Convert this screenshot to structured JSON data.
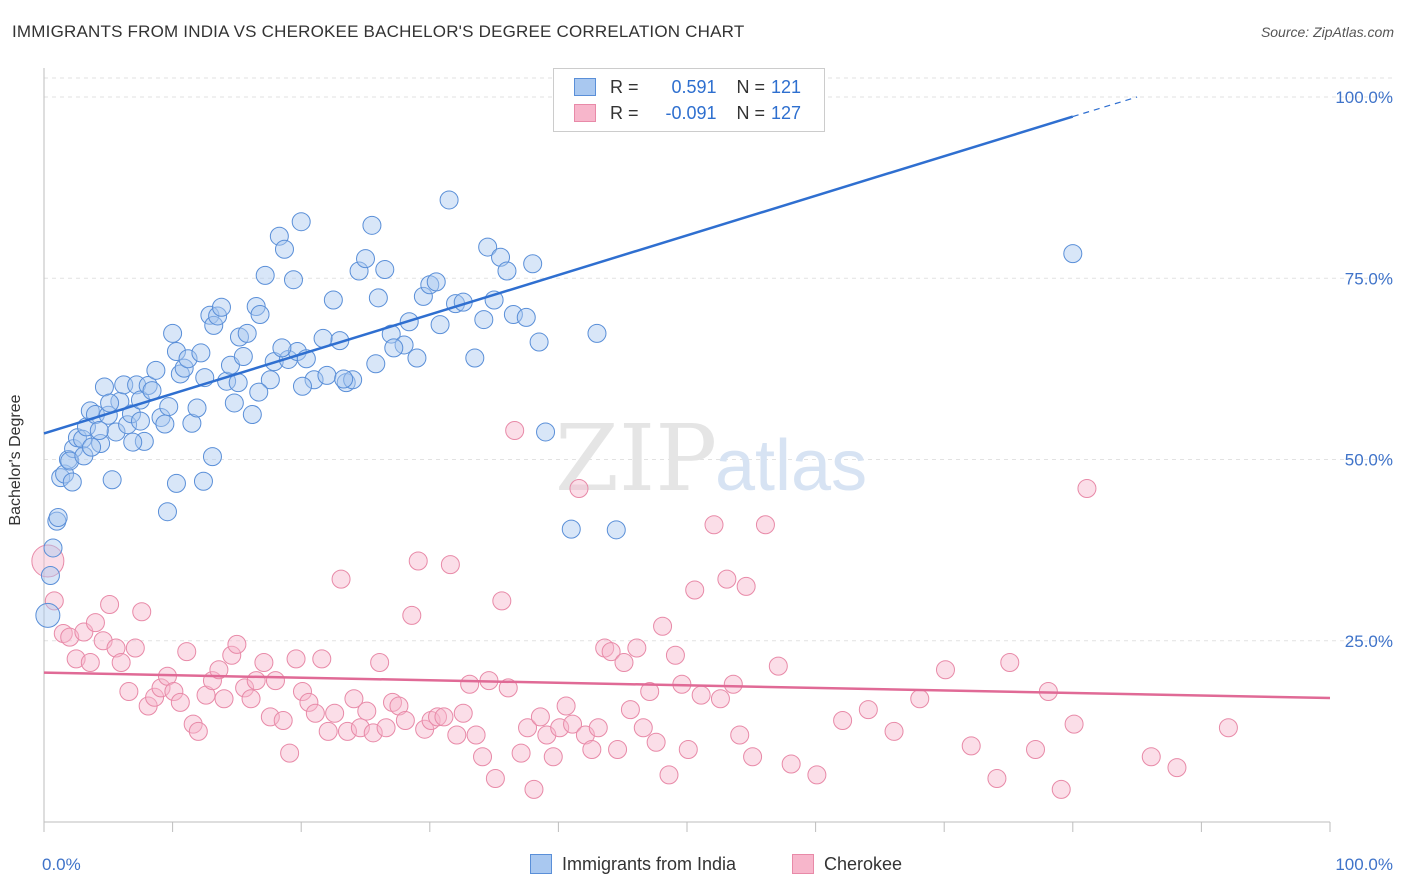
{
  "title": "IMMIGRANTS FROM INDIA VS CHEROKEE BACHELOR'S DEGREE CORRELATION CHART",
  "source": "Source: ZipAtlas.com",
  "watermark": {
    "zip": "ZIP",
    "atlas": "atlas"
  },
  "legend": {
    "india": {
      "r_label": "R =",
      "r_value": "0.591",
      "n_label": "N =",
      "n_value": "121"
    },
    "cherokee": {
      "r_label": "R =",
      "r_value": "-0.091",
      "n_label": "N =",
      "n_value": "127"
    }
  },
  "bottom_legend": {
    "india": "Immigrants from India",
    "cherokee": "Cherokee"
  },
  "colors": {
    "india_fill": "#a9c8f0",
    "india_stroke": "#5a8fd8",
    "india_line": "#2f6fd0",
    "cherokee_fill": "#f7b6cb",
    "cherokee_stroke": "#e88aa8",
    "cherokee_line": "#e06a96",
    "tick_label": "#3f73c9"
  },
  "chart_data": {
    "type": "scatter",
    "xlabel": "",
    "ylabel": "Bachelor's Degree",
    "xlim": [
      0,
      100
    ],
    "ylim": [
      0,
      100
    ],
    "x_tick_labels": [
      {
        "value": 0,
        "label": "0.0%"
      },
      {
        "value": 100,
        "label": "100.0%"
      }
    ],
    "y_tick_labels": [
      {
        "value": 25,
        "label": "25.0%"
      },
      {
        "value": 50,
        "label": "50.0%"
      },
      {
        "value": 75,
        "label": "75.0%"
      },
      {
        "value": 100,
        "label": "100.0%"
      }
    ],
    "x_minor_ticks": [
      0,
      10,
      20,
      30,
      40,
      50,
      60,
      70,
      80,
      90,
      100
    ],
    "grid": "horizontal dashed",
    "legend_position": "top-center",
    "series": [
      {
        "name": "Immigrants from India",
        "trend": {
          "x0": 0,
          "y0": 53.6,
          "x1": 80,
          "y1": 97.3,
          "dashed_to_x": 85,
          "dashed_to_y": 100
        },
        "points": [
          [
            0.3,
            28.5
          ],
          [
            0.5,
            34
          ],
          [
            0.7,
            37.8
          ],
          [
            1,
            41.5
          ],
          [
            1.3,
            47.5
          ],
          [
            1.6,
            48
          ],
          [
            1.9,
            50
          ],
          [
            2.3,
            51.5
          ],
          [
            2.6,
            53
          ],
          [
            3,
            52.8
          ],
          [
            3.3,
            54.5
          ],
          [
            3.6,
            56.7
          ],
          [
            4,
            56.2
          ],
          [
            4.4,
            52.2
          ],
          [
            4.7,
            60
          ],
          [
            5,
            56.1
          ],
          [
            5.3,
            47.2
          ],
          [
            5.6,
            53.8
          ],
          [
            5.9,
            58
          ],
          [
            6.2,
            60.3
          ],
          [
            6.5,
            54.8
          ],
          [
            6.8,
            56.3
          ],
          [
            7.2,
            60.3
          ],
          [
            7.5,
            58.2
          ],
          [
            7.8,
            52.5
          ],
          [
            8.1,
            60.2
          ],
          [
            8.4,
            59.5
          ],
          [
            8.7,
            62.3
          ],
          [
            9.1,
            55.8
          ],
          [
            9.4,
            54.9
          ],
          [
            9.7,
            57.3
          ],
          [
            10,
            67.4
          ],
          [
            10.3,
            64.9
          ],
          [
            10.6,
            61.8
          ],
          [
            10.9,
            62.6
          ],
          [
            11.2,
            63.9
          ],
          [
            11.5,
            55
          ],
          [
            11.9,
            57.1
          ],
          [
            12.2,
            64.7
          ],
          [
            12.5,
            61.3
          ],
          [
            12.9,
            69.9
          ],
          [
            13.2,
            68.5
          ],
          [
            13.5,
            69.8
          ],
          [
            13.8,
            71
          ],
          [
            14.2,
            60.8
          ],
          [
            14.5,
            63
          ],
          [
            14.8,
            57.8
          ],
          [
            15.2,
            66.9
          ],
          [
            15.5,
            64.2
          ],
          [
            15.8,
            67.4
          ],
          [
            16.2,
            56.2
          ],
          [
            16.5,
            71.1
          ],
          [
            16.8,
            70
          ],
          [
            17.2,
            75.4
          ],
          [
            17.6,
            61
          ],
          [
            17.9,
            63.5
          ],
          [
            18.3,
            80.8
          ],
          [
            18.7,
            79
          ],
          [
            19,
            63.8
          ],
          [
            19.4,
            74.8
          ],
          [
            19.7,
            64.9
          ],
          [
            20,
            82.8
          ],
          [
            20.4,
            63.9
          ],
          [
            21,
            61
          ],
          [
            22,
            61.6
          ],
          [
            22.5,
            72
          ],
          [
            23,
            66.4
          ],
          [
            23.5,
            60.6
          ],
          [
            24,
            61
          ],
          [
            24.5,
            76
          ],
          [
            25,
            77.7
          ],
          [
            25.5,
            82.3
          ],
          [
            26,
            72.3
          ],
          [
            26.5,
            76.2
          ],
          [
            27,
            67.3
          ],
          [
            28,
            65.8
          ],
          [
            29,
            64
          ],
          [
            29.5,
            72.5
          ],
          [
            30,
            74.1
          ],
          [
            30.5,
            74.5
          ],
          [
            31.5,
            85.8
          ],
          [
            32,
            71.5
          ],
          [
            33.5,
            64
          ],
          [
            34.5,
            79.3
          ],
          [
            35,
            72
          ],
          [
            35.5,
            77.9
          ],
          [
            36,
            76
          ],
          [
            36.5,
            70
          ],
          [
            37.5,
            69.6
          ],
          [
            38,
            77
          ],
          [
            38.5,
            66.2
          ],
          [
            39,
            53.8
          ],
          [
            41,
            40.4
          ],
          [
            43,
            67.4
          ],
          [
            44.5,
            40.3
          ],
          [
            80,
            78.4
          ],
          [
            2,
            49.8
          ],
          [
            3.1,
            50.5
          ],
          [
            4.3,
            54
          ],
          [
            5.1,
            57.8
          ],
          [
            6.9,
            52.4
          ],
          [
            7.5,
            55.3
          ],
          [
            9.6,
            42.8
          ],
          [
            10.3,
            46.7
          ],
          [
            12.4,
            47
          ],
          [
            13.1,
            50.4
          ],
          [
            15.1,
            60.6
          ],
          [
            16.7,
            59.3
          ],
          [
            18.5,
            65.4
          ],
          [
            20.1,
            60.1
          ],
          [
            21.7,
            66.7
          ],
          [
            23.3,
            61.1
          ],
          [
            25.8,
            63.2
          ],
          [
            27.2,
            65.4
          ],
          [
            28.4,
            69
          ],
          [
            30.8,
            68.6
          ],
          [
            32.6,
            71.7
          ],
          [
            34.2,
            69.3
          ],
          [
            1.1,
            42
          ],
          [
            2.2,
            46.9
          ],
          [
            3.7,
            51.7
          ]
        ]
      },
      {
        "name": "Cherokee",
        "trend": {
          "x0": 0,
          "y0": 20.6,
          "x1": 100,
          "y1": 17.1
        },
        "points": [
          [
            0.3,
            36
          ],
          [
            0.8,
            30.5
          ],
          [
            1.5,
            26
          ],
          [
            2,
            25.5
          ],
          [
            2.5,
            22.5
          ],
          [
            3.1,
            26.2
          ],
          [
            3.6,
            22
          ],
          [
            4,
            27.5
          ],
          [
            4.6,
            25
          ],
          [
            5.1,
            30
          ],
          [
            5.6,
            24
          ],
          [
            6,
            22
          ],
          [
            6.6,
            18
          ],
          [
            7.1,
            24
          ],
          [
            7.6,
            29
          ],
          [
            8.1,
            16
          ],
          [
            8.6,
            17.2
          ],
          [
            9.1,
            18.5
          ],
          [
            9.6,
            20.1
          ],
          [
            10.1,
            18
          ],
          [
            10.6,
            16.5
          ],
          [
            11.1,
            23.5
          ],
          [
            11.6,
            13.5
          ],
          [
            12,
            12.5
          ],
          [
            12.6,
            17.5
          ],
          [
            13.1,
            19.5
          ],
          [
            13.6,
            21
          ],
          [
            14,
            17
          ],
          [
            14.6,
            23
          ],
          [
            15,
            24.5
          ],
          [
            15.6,
            18.5
          ],
          [
            16.1,
            17
          ],
          [
            16.5,
            19.5
          ],
          [
            17.1,
            22
          ],
          [
            17.6,
            14.5
          ],
          [
            18,
            19.5
          ],
          [
            18.6,
            14
          ],
          [
            19.1,
            9.5
          ],
          [
            19.6,
            22.5
          ],
          [
            20.1,
            18
          ],
          [
            20.6,
            16.5
          ],
          [
            21.1,
            15
          ],
          [
            21.6,
            22.5
          ],
          [
            22.1,
            12.5
          ],
          [
            22.6,
            15
          ],
          [
            23.1,
            33.5
          ],
          [
            23.6,
            12.5
          ],
          [
            24.1,
            17
          ],
          [
            24.6,
            13
          ],
          [
            25.1,
            15.3
          ],
          [
            25.6,
            12.3
          ],
          [
            26.1,
            22
          ],
          [
            26.6,
            13
          ],
          [
            27.1,
            16.5
          ],
          [
            27.6,
            16
          ],
          [
            28.1,
            14
          ],
          [
            28.6,
            28.5
          ],
          [
            29.1,
            36
          ],
          [
            29.6,
            12.8
          ],
          [
            30.1,
            14
          ],
          [
            30.6,
            14.5
          ],
          [
            31.1,
            14.5
          ],
          [
            31.6,
            35.5
          ],
          [
            32.1,
            12
          ],
          [
            32.6,
            15
          ],
          [
            33.1,
            19
          ],
          [
            33.6,
            12
          ],
          [
            34.1,
            9
          ],
          [
            34.6,
            19.5
          ],
          [
            35.1,
            6
          ],
          [
            35.6,
            30.5
          ],
          [
            36.1,
            18.5
          ],
          [
            36.6,
            54
          ],
          [
            37.1,
            9.5
          ],
          [
            37.6,
            13
          ],
          [
            38.1,
            4.5
          ],
          [
            38.6,
            14.5
          ],
          [
            39.1,
            12
          ],
          [
            39.6,
            9
          ],
          [
            40.1,
            13
          ],
          [
            40.6,
            16
          ],
          [
            41.1,
            13.5
          ],
          [
            41.6,
            46
          ],
          [
            42.1,
            12
          ],
          [
            42.6,
            10
          ],
          [
            43.1,
            13
          ],
          [
            43.6,
            24
          ],
          [
            44.1,
            23.5
          ],
          [
            44.6,
            10
          ],
          [
            45.1,
            22
          ],
          [
            45.6,
            15.5
          ],
          [
            46.1,
            24
          ],
          [
            46.6,
            13
          ],
          [
            47.1,
            18
          ],
          [
            47.6,
            11
          ],
          [
            48.1,
            27
          ],
          [
            48.6,
            6.5
          ],
          [
            49.1,
            23
          ],
          [
            49.6,
            19
          ],
          [
            50.1,
            10
          ],
          [
            50.6,
            32
          ],
          [
            51.1,
            17.5
          ],
          [
            52.1,
            41
          ],
          [
            52.6,
            17
          ],
          [
            53.1,
            33.5
          ],
          [
            53.6,
            19
          ],
          [
            54.1,
            12
          ],
          [
            54.6,
            32.5
          ],
          [
            55.1,
            9
          ],
          [
            56.1,
            41
          ],
          [
            57.1,
            21.5
          ],
          [
            58.1,
            8
          ],
          [
            60.1,
            6.5
          ],
          [
            62.1,
            14
          ],
          [
            64.1,
            15.5
          ],
          [
            66.1,
            12.5
          ],
          [
            68.1,
            17
          ],
          [
            70.1,
            21
          ],
          [
            72.1,
            10.5
          ],
          [
            74.1,
            6
          ],
          [
            75.1,
            22
          ],
          [
            77.1,
            10
          ],
          [
            78.1,
            18
          ],
          [
            79.1,
            4.5
          ],
          [
            80.1,
            13.5
          ],
          [
            81.1,
            46
          ],
          [
            86.1,
            9
          ],
          [
            88.1,
            7.5
          ],
          [
            92.1,
            13
          ]
        ]
      }
    ]
  }
}
